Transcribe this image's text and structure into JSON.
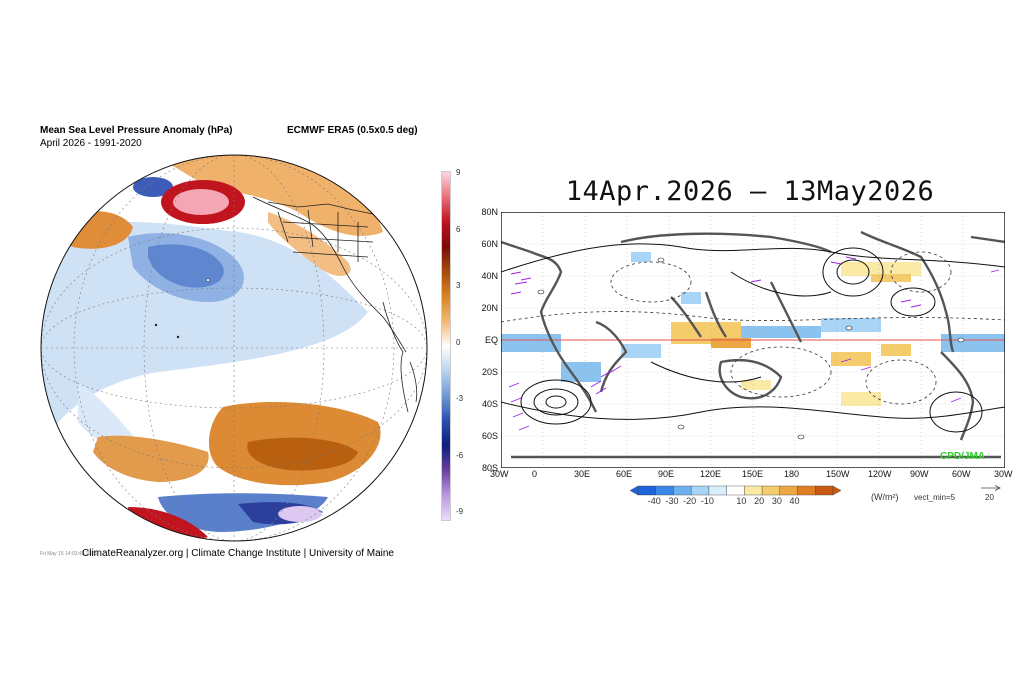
{
  "left_panel": {
    "title": "Mean Sea Level Pressure Anomaly (hPa)",
    "subtitle": "April 2026 - 1991-2020",
    "source": "ECMWF ERA5 (0.5x0.5 deg)",
    "timestamp": "Fri May 15 14:03:43 2026",
    "credit": "ClimateReanalyzer.org | Climate Change Institute | University of Maine",
    "colorbar": {
      "ticks": [
        "9",
        "6",
        "3",
        "0",
        "-3",
        "-6",
        "-9"
      ],
      "colors_top_to_bottom": [
        "#fbd9e6",
        "#e8707a",
        "#c0141f",
        "#7a0a08",
        "#a64c0c",
        "#d98324",
        "#f2b872",
        "#ffffff",
        "#b9d3ee",
        "#6f9ad6",
        "#2a4fb0",
        "#0d1f7a",
        "#6a3ea0",
        "#b89ae0",
        "#ecdcf7"
      ]
    }
  },
  "right_panel": {
    "title": "14Apr.2026 – 13May2026",
    "lat_labels": [
      "80N",
      "60N",
      "40N",
      "20N",
      "EQ",
      "20S",
      "40S",
      "60S",
      "80S"
    ],
    "lon_labels": [
      "30W",
      "0",
      "30E",
      "60E",
      "90E",
      "120E",
      "150E",
      "180",
      "150W",
      "120W",
      "90W",
      "60W",
      "30W"
    ],
    "watermark": "CPD/JMA",
    "colorbar": {
      "labels": [
        "-40",
        "-30",
        "-20",
        "-10",
        "10",
        "20",
        "30",
        "40"
      ],
      "units": "(W/m²)",
      "colors": [
        "#1f63d8",
        "#3b87e8",
        "#6fb0f0",
        "#a8d4f6",
        "#d9eefb",
        "#ffffff",
        "#fbe9a6",
        "#f4cc6c",
        "#eca844",
        "#df7e26",
        "#c85a12"
      ]
    },
    "vector_min_label": "vect_min=5",
    "vector_ref_label": "20"
  }
}
